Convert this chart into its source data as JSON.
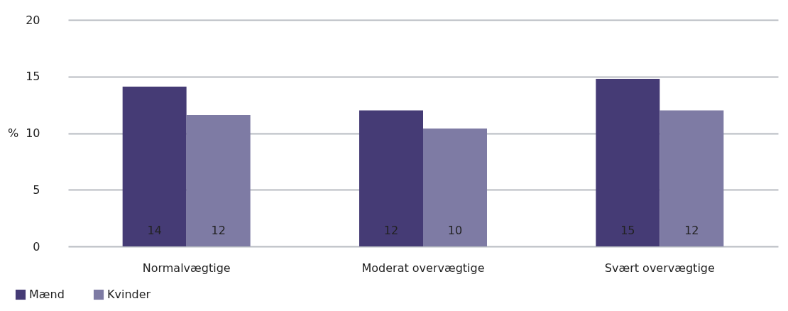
{
  "chart_data": {
    "type": "bar",
    "ylabel": "%",
    "categories": [
      "Normalvægtige",
      "Moderat overvægtige",
      "Svært overvægtige"
    ],
    "series": [
      {
        "name": "Mænd",
        "color": "#453b75",
        "values": [
          14.1,
          12.0,
          14.8
        ],
        "value_labels": [
          "14",
          "12",
          "15"
        ]
      },
      {
        "name": "Kvinder",
        "color": "#7e7ba4",
        "values": [
          11.6,
          10.4,
          12.0
        ],
        "value_labels": [
          "12",
          "10",
          "12"
        ]
      }
    ],
    "ylim": [
      0,
      20
    ],
    "yticks": [
      0,
      5,
      10,
      15,
      20
    ],
    "grid": "y",
    "legend": "bottom left"
  }
}
